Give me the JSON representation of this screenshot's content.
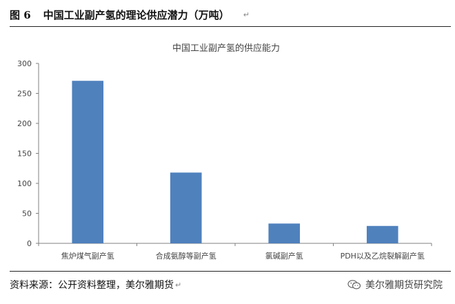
{
  "header": {
    "figure_number": "图 6",
    "figure_title": "中国工业副产氢的理论供应潜力（万吨）",
    "para_mark": "↵"
  },
  "chart_data": {
    "type": "bar",
    "title": "中国工业副产氢的供应能力",
    "xlabel": "",
    "ylabel": "",
    "categories": [
      "焦炉煤气副产氢",
      "合成氨醇等副产氢",
      "氯碱副产氢",
      "PDH以及乙烷裂解副产氢"
    ],
    "values": [
      271,
      118,
      33,
      29
    ],
    "ylim": [
      0,
      300
    ],
    "yticks": [
      "0",
      "50",
      "100",
      "150",
      "200",
      "250",
      "300"
    ],
    "grid": false,
    "bar_color": "#4F81BD"
  },
  "footer": {
    "source": "资料来源：公开资料整理，美尔雅期货",
    "para_mark": "↵",
    "watermark": "美尔雅期货研究院",
    "watermark_icon": "wechat-icon"
  }
}
